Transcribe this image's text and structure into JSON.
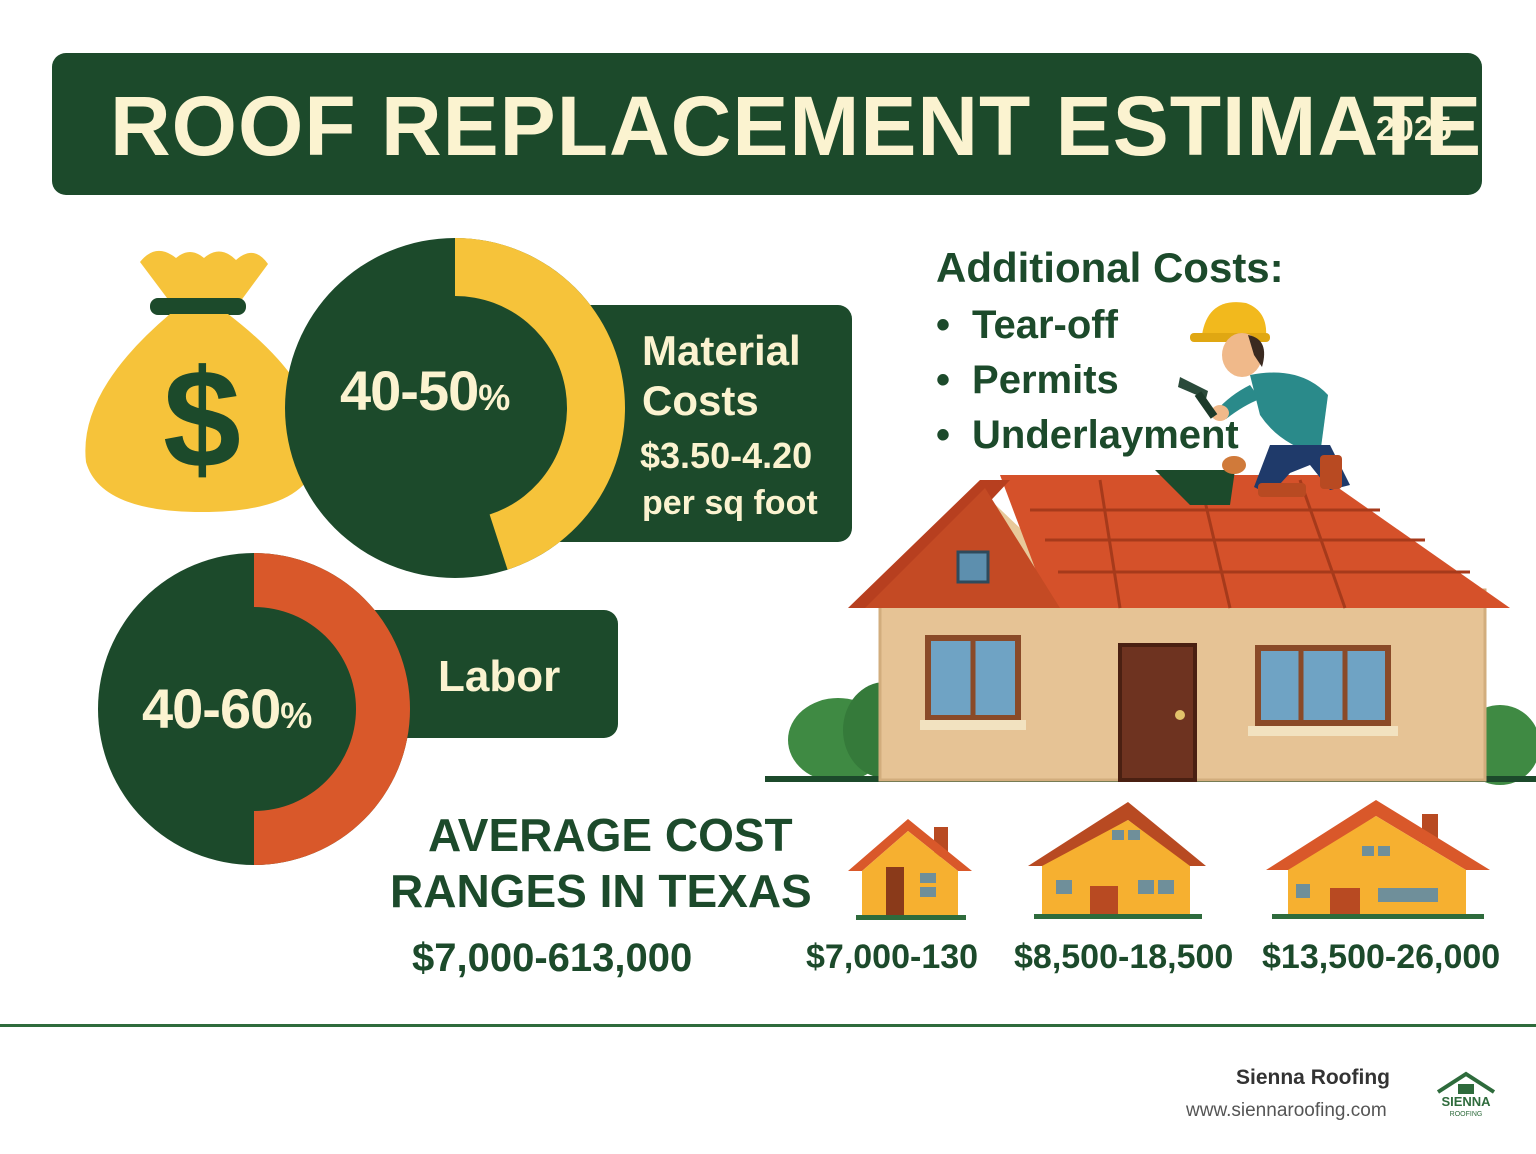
{
  "header": {
    "title": "ROOF REPLACEMENT ESTIMATE",
    "year": "2025"
  },
  "material": {
    "percent": "40-50%",
    "share": 0.45,
    "label_line1": "Material",
    "label_line2": "Costs",
    "price": "$3.50-4.20",
    "unit": "per sq foot"
  },
  "labor": {
    "percent": "40-60%",
    "share": 0.5,
    "label": "Labor"
  },
  "additional": {
    "title": "Additional Costs:",
    "items": [
      "Tear-off",
      "Permits",
      "Underlayment"
    ]
  },
  "average": {
    "title_line1": "AVERAGE COST",
    "title_line2": "RANGES IN TEXAS",
    "range": "$7,000-613,000"
  },
  "houses": [
    {
      "name": "small",
      "range": "$7,000-130"
    },
    {
      "name": "medium",
      "range": "$8,500-18,500"
    },
    {
      "name": "large",
      "range": "$13,500-26,000"
    }
  ],
  "footer": {
    "company": "Sienna Roofing",
    "url": "www.siennaroofing.com",
    "logo_text": "SIENNA",
    "logo_subtext": "ROOFING"
  },
  "colors": {
    "dark_green": "#1c4a2b",
    "yellow": "#f6c33a",
    "orange": "#d9582a",
    "cream": "#fbf3d0"
  },
  "icons": [
    "money-bag-icon",
    "roofer-icon",
    "house-illustration",
    "small-house-icon",
    "medium-house-icon",
    "large-house-icon",
    "sienna-logo-icon"
  ]
}
